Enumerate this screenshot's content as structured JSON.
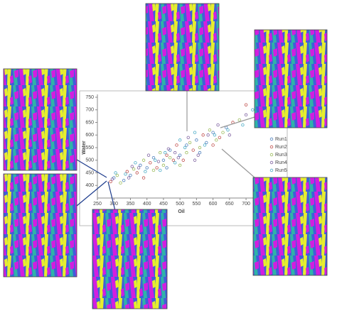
{
  "chart_data": {
    "type": "scatter",
    "x_label": "Oil",
    "y_label": "Water",
    "xlim": [
      250,
      730
    ],
    "ylim": [
      350,
      750
    ],
    "xticks": [
      250,
      300,
      350,
      400,
      450,
      500,
      550,
      600,
      650,
      700
    ],
    "yticks": [
      400,
      450,
      500,
      550,
      600,
      650,
      700,
      750
    ],
    "legend": "right",
    "series": [
      {
        "name": "Run1",
        "color": "#4f81bd",
        "x": [
          300,
          350,
          380,
          400,
          420,
          450,
          470,
          500,
          520,
          550,
          580,
          600,
          640,
          330,
          460,
          560
        ],
        "values": [
          430,
          440,
          480,
          470,
          510,
          500,
          540,
          520,
          560,
          580,
          570,
          610,
          630,
          420,
          470,
          530
        ]
      },
      {
        "name": "Run2",
        "color": "#c0504d",
        "x": [
          290,
          340,
          370,
          410,
          430,
          460,
          490,
          510,
          540,
          570,
          620,
          660,
          700,
          390,
          480,
          600
        ],
        "values": [
          415,
          455,
          450,
          490,
          470,
          520,
          560,
          500,
          540,
          600,
          590,
          650,
          720,
          430,
          500,
          560
        ]
      },
      {
        "name": "Run3",
        "color": "#9bbb59",
        "x": [
          310,
          360,
          390,
          420,
          440,
          470,
          500,
          530,
          560,
          590,
          630,
          680,
          320,
          450,
          520,
          610
        ],
        "values": [
          440,
          465,
          500,
          460,
          530,
          510,
          480,
          570,
          550,
          620,
          610,
          660,
          410,
          480,
          530,
          580
        ]
      },
      {
        "name": "Run4",
        "color": "#8064a2",
        "x": [
          295,
          345,
          375,
          405,
          435,
          465,
          495,
          525,
          555,
          585,
          615,
          650,
          700,
          355,
          485,
          545
        ],
        "values": [
          425,
          430,
          470,
          520,
          495,
          545,
          510,
          590,
          520,
          600,
          640,
          600,
          680,
          475,
          530,
          500
        ]
      },
      {
        "name": "Run5",
        "color": "#4bacc6",
        "x": [
          305,
          335,
          365,
          395,
          425,
          455,
          485,
          515,
          545,
          575,
          605,
          645,
          690,
          720,
          440,
          500
        ],
        "values": [
          450,
          445,
          490,
          455,
          500,
          530,
          490,
          550,
          610,
          560,
          600,
          620,
          640,
          700,
          460,
          580
        ]
      }
    ]
  }
}
